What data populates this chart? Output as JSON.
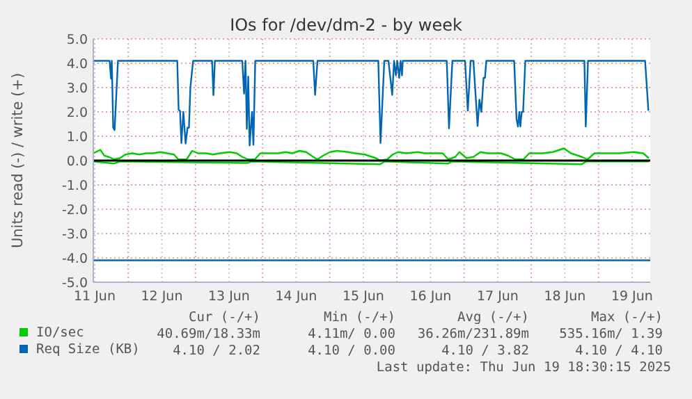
{
  "chart_data": {
    "type": "line",
    "title": "IOs for /dev/dm-2 - by week",
    "ylabel": "Units read (-) / write (+)",
    "xlim": [
      "2025-06-11T11:30",
      "2025-06-19T18:30"
    ],
    "xticks": [
      {
        "value": "2025-06-11T12:00",
        "label": "11 Jun"
      },
      {
        "value": "2025-06-12T00:00",
        "label": null
      },
      {
        "value": "2025-06-12T12:00",
        "label": "12 Jun"
      },
      {
        "value": "2025-06-13T00:00",
        "label": null
      },
      {
        "value": "2025-06-13T12:00",
        "label": "13 Jun"
      },
      {
        "value": "2025-06-14T00:00",
        "label": null
      },
      {
        "value": "2025-06-14T12:00",
        "label": "14 Jun"
      },
      {
        "value": "2025-06-15T00:00",
        "label": null
      },
      {
        "value": "2025-06-15T12:00",
        "label": "15 Jun"
      },
      {
        "value": "2025-06-16T00:00",
        "label": null
      },
      {
        "value": "2025-06-16T12:00",
        "label": "16 Jun"
      },
      {
        "value": "2025-06-17T00:00",
        "label": null
      },
      {
        "value": "2025-06-17T12:00",
        "label": "17 Jun"
      },
      {
        "value": "2025-06-18T00:00",
        "label": null
      },
      {
        "value": "2025-06-18T12:00",
        "label": "18 Jun"
      },
      {
        "value": "2025-06-19T00:00",
        "label": null
      },
      {
        "value": "2025-06-19T12:00",
        "label": "19 Jun"
      }
    ],
    "ylim": [
      -5,
      5
    ],
    "yticks": [
      {
        "value": -5,
        "label": "-5.0"
      },
      {
        "value": -4,
        "label": "-4.0"
      },
      {
        "value": -3,
        "label": "-3.0"
      },
      {
        "value": -2,
        "label": "-2.0"
      },
      {
        "value": -1,
        "label": "-1.0"
      },
      {
        "value": 0,
        "label": "0.0"
      },
      {
        "value": 1,
        "label": "1.0"
      },
      {
        "value": 2,
        "label": "2.0"
      },
      {
        "value": 3,
        "label": "3.0"
      },
      {
        "value": 4,
        "label": "4.0"
      },
      {
        "value": 5,
        "label": "5.0"
      }
    ],
    "grid": true,
    "legend": "bottom",
    "marker": "none",
    "line_style": "solid",
    "ref_lines": [
      {
        "axis": "y",
        "value": 0,
        "color": "#000000"
      }
    ],
    "series": [
      {
        "name": "IO/sec",
        "color": "#00cc00",
        "x": [
          "2025-06-11T11:30",
          "2025-06-11T14:00",
          "2025-06-11T15:30",
          "2025-06-11T17:00",
          "2025-06-11T19:00",
          "2025-06-11T21:00",
          "2025-06-11T23:00",
          "2025-06-12T01:25",
          "2025-06-12T03:55",
          "2025-06-12T06:25",
          "2025-06-12T08:55",
          "2025-06-12T11:25",
          "2025-06-12T13:50",
          "2025-06-12T16:20",
          "2025-06-12T17:50",
          "2025-06-12T20:50",
          "2025-06-12T22:50",
          "2025-06-13T00:50",
          "2025-06-13T03:50",
          "2025-06-13T06:15",
          "2025-06-13T08:45",
          "2025-06-13T12:15",
          "2025-06-13T14:45",
          "2025-06-13T16:45",
          "2025-06-13T18:45",
          "2025-06-13T21:15",
          "2025-06-13T23:10",
          "2025-06-14T03:10",
          "2025-06-14T05:40",
          "2025-06-14T08:10",
          "2025-06-14T10:40",
          "2025-06-14T13:10",
          "2025-06-14T15:35",
          "2025-06-14T18:05",
          "2025-06-14T19:35",
          "2025-06-14T21:35",
          "2025-06-15T00:05",
          "2025-06-15T02:35",
          "2025-06-15T06:30",
          "2025-06-15T09:00",
          "2025-06-15T12:30",
          "2025-06-15T16:30",
          "2025-06-15T18:00",
          "2025-06-15T20:30",
          "2025-06-15T22:30",
          "2025-06-16T00:25",
          "2025-06-16T03:25",
          "2025-06-16T07:25",
          "2025-06-16T09:55",
          "2025-06-16T16:20",
          "2025-06-16T18:20",
          "2025-06-16T20:50",
          "2025-06-16T22:20",
          "2025-06-17T00:50",
          "2025-06-17T03:20",
          "2025-06-17T05:50",
          "2025-06-17T08:15",
          "2025-06-17T13:15",
          "2025-06-17T15:45",
          "2025-06-17T18:15",
          "2025-06-17T21:15",
          "2025-06-17T23:15",
          "2025-06-18T04:10",
          "2025-06-18T07:40",
          "2025-06-18T11:40",
          "2025-06-18T14:10",
          "2025-06-18T18:05",
          "2025-06-18T20:05",
          "2025-06-18T22:35",
          "2025-06-19T02:35",
          "2025-06-19T07:35",
          "2025-06-19T12:30",
          "2025-06-19T16:00",
          "2025-06-19T18:00"
        ],
        "values": [
          0.3,
          0.44,
          0.2,
          0.15,
          0.05,
          0.1,
          0.25,
          0.3,
          0.25,
          0.3,
          0.3,
          0.35,
          0.3,
          0.25,
          0.05,
          0.05,
          0.4,
          0.3,
          0.3,
          0.25,
          0.3,
          0.35,
          0.3,
          0.15,
          0.05,
          0.05,
          0.3,
          0.3,
          0.3,
          0.35,
          0.3,
          0.4,
          0.35,
          0.15,
          0.05,
          0.2,
          0.35,
          0.4,
          0.35,
          0.3,
          0.25,
          0.1,
          0.0,
          0.05,
          0.25,
          0.35,
          0.3,
          0.35,
          0.3,
          0.3,
          0.05,
          0.15,
          0.35,
          0.1,
          0.15,
          0.35,
          0.3,
          0.3,
          0.2,
          0.05,
          0.05,
          0.3,
          0.3,
          0.35,
          0.5,
          0.3,
          0.15,
          0.05,
          0.3,
          0.3,
          0.3,
          0.35,
          0.3,
          0.1
        ]
      },
      {
        "color": "#00cc00",
        "x": [
          "2025-06-11T11:30",
          "2025-06-11T19:00",
          "2025-06-11T21:00",
          "2025-06-13T18:45",
          "2025-06-13T20:00",
          "2025-06-15T18:00",
          "2025-06-15T19:30",
          "2025-06-16T18:20",
          "2025-06-16T19:30",
          "2025-06-18T18:05",
          "2025-06-18T19:30",
          "2025-06-19T18:00"
        ],
        "values": [
          -0.04,
          -0.12,
          -0.04,
          -0.1,
          -0.04,
          -0.15,
          -0.04,
          -0.12,
          -0.04,
          -0.15,
          -0.04,
          -0.04
        ]
      },
      {
        "name": "Req Size (KB)",
        "color": "#0066b3",
        "x": [
          "2025-06-11T11:30",
          "2025-06-11T17:20",
          "2025-06-11T17:50",
          "2025-06-11T18:07",
          "2025-06-11T18:37",
          "2025-06-11T19:07",
          "2025-06-11T20:19",
          "2025-06-12T17:30",
          "2025-06-12T18:00",
          "2025-06-12T18:29",
          "2025-06-12T18:59",
          "2025-06-12T19:41",
          "2025-06-12T20:29",
          "2025-06-12T21:11",
          "2025-06-12T21:41",
          "2025-06-12T22:11",
          "2025-06-12T23:10",
          "2025-06-13T05:56",
          "2025-06-13T06:26",
          "2025-06-13T06:56",
          "2025-06-13T16:44",
          "2025-06-13T17:23",
          "2025-06-13T17:53",
          "2025-06-13T18:22",
          "2025-06-13T18:52",
          "2025-06-13T19:22",
          "2025-06-13T20:13",
          "2025-06-13T20:43",
          "2025-06-13T21:22",
          "2025-06-14T18:06",
          "2025-06-14T18:45",
          "2025-06-14T19:36",
          "2025-06-15T17:20",
          "2025-06-15T18:08",
          "2025-06-15T19:29",
          "2025-06-15T20:58",
          "2025-06-15T22:19",
          "2025-06-15T22:58",
          "2025-06-15T23:37",
          "2025-06-16T00:06",
          "2025-06-16T00:48",
          "2025-06-16T01:18",
          "2025-06-16T01:48",
          "2025-06-16T02:05",
          "2025-06-16T17:48",
          "2025-06-16T18:36",
          "2025-06-16T19:48",
          "2025-06-17T00:20",
          "2025-06-17T01:19",
          "2025-06-17T02:19",
          "2025-06-17T03:19",
          "2025-06-17T04:49",
          "2025-06-17T05:28",
          "2025-06-17T06:09",
          "2025-06-17T06:57",
          "2025-06-17T07:27",
          "2025-06-17T07:56",
          "2025-06-17T17:53",
          "2025-06-17T18:44",
          "2025-06-17T19:14",
          "2025-06-17T19:44",
          "2025-06-17T20:05",
          "2025-06-17T20:35",
          "2025-06-17T21:05",
          "2025-06-17T21:52",
          "2025-06-18T18:58",
          "2025-06-18T19:28",
          "2025-06-18T20:16",
          "2025-06-19T16:40",
          "2025-06-19T17:51"
        ],
        "values": [
          4.1,
          4.1,
          3.37,
          4.1,
          1.36,
          1.25,
          4.1,
          4.1,
          2.08,
          2.05,
          0.72,
          2.0,
          0.7,
          1.35,
          1.35,
          3.0,
          4.1,
          4.1,
          2.69,
          4.1,
          4.1,
          2.75,
          4.1,
          1.3,
          3.45,
          0.62,
          2.0,
          0.65,
          4.1,
          4.1,
          2.7,
          4.1,
          4.1,
          0.72,
          4.1,
          4.1,
          2.7,
          4.1,
          3.5,
          4.1,
          3.4,
          4.1,
          3.5,
          4.1,
          4.1,
          1.32,
          4.1,
          4.1,
          2.05,
          4.1,
          4.1,
          1.42,
          2.5,
          2.0,
          3.4,
          3.4,
          4.1,
          4.1,
          1.7,
          1.4,
          2.0,
          1.4,
          2.0,
          2.0,
          4.1,
          4.1,
          1.4,
          4.1,
          4.1,
          2.05
        ]
      },
      {
        "color": "#0066b3",
        "x": [
          "2025-06-11T11:30",
          "2025-06-19T18:30"
        ],
        "values": [
          -4.1,
          -4.1
        ]
      }
    ],
    "annotations": [
      "Cur (-/+)",
      "Min (-/+)",
      "Avg (-/+)",
      "Max (-/+)",
      "40.69m/18.33m",
      "4.11m/ 0.00",
      "36.26m/231.89m",
      "535.16m/ 1.39",
      "4.10 / 2.02",
      "4.10 / 0.00",
      "4.10 / 3.82",
      "4.10 / 4.10",
      "Last update: Thu Jun 19 18:30:15 2025"
    ]
  }
}
